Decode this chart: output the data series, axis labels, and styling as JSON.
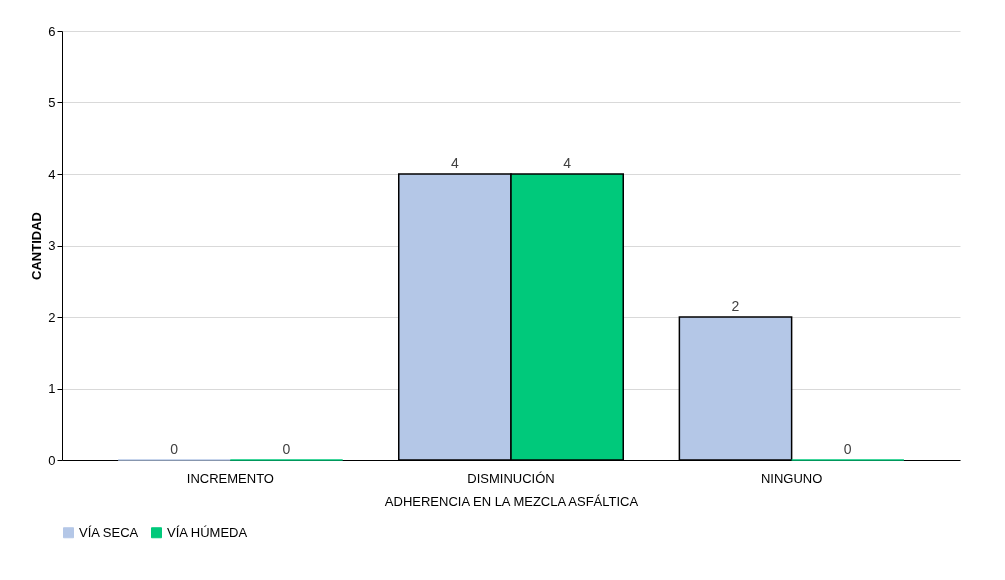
{
  "chart_data": {
    "type": "bar",
    "xlabel": "ADHERENCIA EN LA MEZCLA ASFÁLTICA",
    "ylabel": "CANTIDAD",
    "categories": [
      "INCREMENTO",
      "DISMINUCIÓN",
      "NINGUNO"
    ],
    "series": [
      {
        "name": "VÍA SECA",
        "color": "#b4c7e7",
        "values": [
          0,
          4,
          2
        ]
      },
      {
        "name": "VÍA HÚMEDA",
        "color": "#00c97b",
        "values": [
          0,
          4,
          0
        ]
      }
    ],
    "ylim": [
      0,
      6
    ],
    "yticks": [
      0,
      1,
      2,
      3,
      4,
      5,
      6
    ],
    "grid": "y",
    "legend": "bottom",
    "data_labels": true
  }
}
